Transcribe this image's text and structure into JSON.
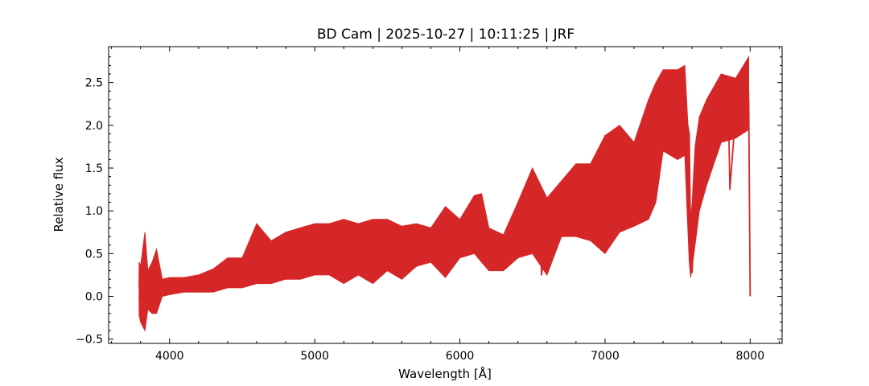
{
  "chart_data": {
    "type": "line",
    "title": "BD Cam | 2025-10-27 | 10:11:25 | JRF",
    "xlabel": "Wavelength [Å]",
    "ylabel": "Relative flux",
    "xlim": [
      3580,
      8220
    ],
    "ylim": [
      -0.55,
      2.92
    ],
    "xticks": [
      4000,
      5000,
      6000,
      7000,
      8000
    ],
    "xtick_labels": [
      "4000",
      "5000",
      "6000",
      "7000",
      "8000"
    ],
    "yticks": [
      -0.5,
      0.0,
      0.5,
      1.0,
      1.5,
      2.0,
      2.5
    ],
    "ytick_labels": [
      "−0.5",
      "0.0",
      "0.5",
      "1.0",
      "1.5",
      "2.0",
      "2.5"
    ],
    "grid": false,
    "legend": "none",
    "color": "#d62728",
    "series": [
      {
        "x": [
          3790,
          3800,
          3810,
          3820,
          3830,
          3840,
          3850,
          3870,
          3890,
          3910,
          3930,
          3950,
          3970,
          4000,
          4050,
          4100,
          4150,
          4200,
          4250,
          4300,
          4350,
          4400,
          4450,
          4500,
          4550,
          4600,
          4650,
          4700,
          4750,
          4800,
          4850,
          4900,
          4950,
          5000,
          5050,
          5100,
          5150,
          5200,
          5250,
          5300,
          5350,
          5400,
          5450,
          5500,
          5550,
          5600,
          5650,
          5700,
          5750,
          5800,
          5850,
          5880,
          5895,
          5920,
          5950,
          6000,
          6050,
          6100,
          6150,
          6200,
          6250,
          6300,
          6350,
          6400,
          6450,
          6500,
          6550,
          6563,
          6600,
          6650,
          6700,
          6750,
          6800,
          6850,
          6900,
          6950,
          7000,
          7050,
          7100,
          7150,
          7200,
          7250,
          7300,
          7350,
          7400,
          7450,
          7500,
          7550,
          7580,
          7590,
          7600,
          7620,
          7650,
          7700,
          7750,
          7800,
          7850,
          7860,
          7900,
          7950,
          7990,
          8000
        ],
        "y": [
          0.0,
          -0.1,
          0.3,
          0.0,
          -0.2,
          0.4,
          0.0,
          0.1,
          0.05,
          0.1,
          0.05,
          0.08,
          0.1,
          0.12,
          0.15,
          0.12,
          0.18,
          0.17,
          0.22,
          0.2,
          0.25,
          0.28,
          0.3,
          0.3,
          0.35,
          0.4,
          0.38,
          0.42,
          0.48,
          0.45,
          0.5,
          0.55,
          0.5,
          0.55,
          0.6,
          0.55,
          0.62,
          0.6,
          0.65,
          0.6,
          0.55,
          0.6,
          0.55,
          0.62,
          0.58,
          0.6,
          0.65,
          0.62,
          0.7,
          0.7,
          0.72,
          0.45,
          0.3,
          0.6,
          0.65,
          0.72,
          0.82,
          0.95,
          1.1,
          0.65,
          0.55,
          0.48,
          0.5,
          0.82,
          0.98,
          1.05,
          0.82,
          0.25,
          0.88,
          1.05,
          1.08,
          1.02,
          1.2,
          1.25,
          1.3,
          1.4,
          1.45,
          1.6,
          1.55,
          1.25,
          1.35,
          1.6,
          1.95,
          2.0,
          2.2,
          2.3,
          2.25,
          2.2,
          1.9,
          0.5,
          0.28,
          1.1,
          1.5,
          1.8,
          2.05,
          2.1,
          2.2,
          1.25,
          2.15,
          2.3,
          2.3,
          0.0
        ]
      }
    ],
    "envelope": {
      "x": [
        3790,
        3800,
        3830,
        3850,
        3880,
        3910,
        3950,
        4000,
        4100,
        4200,
        4300,
        4400,
        4500,
        4600,
        4700,
        4800,
        4900,
        5000,
        5100,
        5200,
        5300,
        5400,
        5500,
        5600,
        5700,
        5800,
        5900,
        6000,
        6100,
        6150,
        6200,
        6300,
        6400,
        6500,
        6600,
        6700,
        6800,
        6900,
        7000,
        7100,
        7200,
        7300,
        7350,
        7400,
        7500,
        7550,
        7580,
        7590,
        7600,
        7620,
        7650,
        7700,
        7800,
        7900,
        7990
      ],
      "upper": [
        0.4,
        0.35,
        0.75,
        0.3,
        0.4,
        0.55,
        0.2,
        0.22,
        0.22,
        0.25,
        0.32,
        0.45,
        0.45,
        0.85,
        0.65,
        0.75,
        0.8,
        0.85,
        0.85,
        0.9,
        0.85,
        0.9,
        0.9,
        0.82,
        0.85,
        0.8,
        1.05,
        0.9,
        1.18,
        1.2,
        0.8,
        0.72,
        1.1,
        1.5,
        1.15,
        1.35,
        1.55,
        1.55,
        1.88,
        2.0,
        1.8,
        2.3,
        2.5,
        2.65,
        2.65,
        2.7,
        1.7,
        0.9,
        1.1,
        1.75,
        2.1,
        2.3,
        2.6,
        2.55,
        2.8
      ],
      "lower": [
        -0.22,
        -0.3,
        -0.4,
        -0.15,
        -0.2,
        -0.2,
        0.0,
        0.02,
        0.05,
        0.05,
        0.05,
        0.1,
        0.1,
        0.15,
        0.15,
        0.2,
        0.2,
        0.25,
        0.25,
        0.15,
        0.25,
        0.15,
        0.3,
        0.2,
        0.35,
        0.4,
        0.22,
        0.45,
        0.5,
        0.4,
        0.3,
        0.3,
        0.45,
        0.5,
        0.25,
        0.7,
        0.7,
        0.65,
        0.5,
        0.75,
        0.82,
        0.9,
        1.1,
        1.7,
        1.6,
        1.65,
        0.4,
        0.22,
        0.35,
        0.6,
        1.0,
        1.3,
        1.8,
        1.85,
        1.95
      ]
    }
  }
}
